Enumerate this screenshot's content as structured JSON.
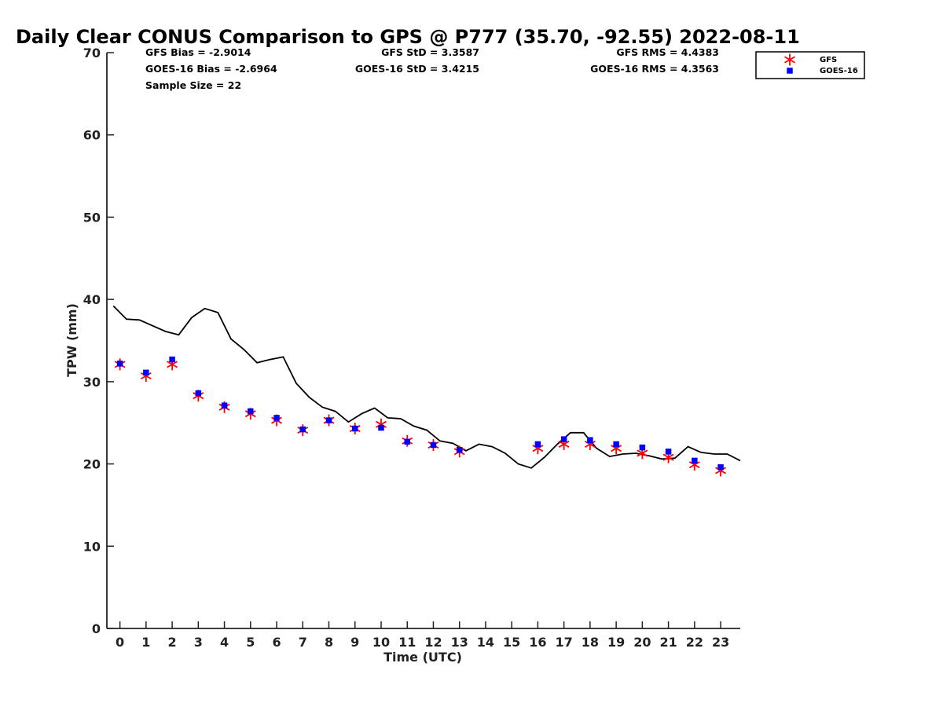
{
  "chart_data": {
    "type": "line",
    "title": "Daily Clear CONUS Comparison to GPS @ P777 (35.70, -92.55) 2022-08-11",
    "xlabel": "Time (UTC)",
    "ylabel": "TPW (mm)",
    "xlim": [
      -0.5,
      23.75
    ],
    "ylim": [
      0,
      70
    ],
    "x_ticks": [
      0,
      1,
      2,
      3,
      4,
      5,
      6,
      7,
      8,
      9,
      10,
      11,
      12,
      13,
      14,
      15,
      16,
      17,
      18,
      19,
      20,
      21,
      22,
      23
    ],
    "y_ticks": [
      0,
      10,
      20,
      30,
      40,
      50,
      60,
      70
    ],
    "grid": false,
    "legend_position": "top-right",
    "stats": {
      "gfs_bias": "GFS Bias = -2.9014",
      "goes_bias": "GOES-16 Bias = -2.6964",
      "sample_size": "Sample Size = 22",
      "gfs_std": "GFS StD = 3.3587",
      "goes_std": "GOES-16 StD = 3.4215",
      "gfs_rms": "GFS RMS = 4.4383",
      "goes_rms": "GOES-16 RMS = 4.3563"
    },
    "series": [
      {
        "name": "GPS",
        "kind": "line",
        "color": "#000000",
        "x": [
          -0.25,
          0.25,
          0.75,
          1.25,
          1.75,
          2.25,
          2.75,
          3.25,
          3.75,
          4.25,
          4.75,
          5.25,
          5.75,
          6.25,
          6.75,
          7.25,
          7.75,
          8.25,
          8.75,
          9.25,
          9.75,
          10.25,
          10.75,
          11.25,
          11.75,
          12.25,
          12.75,
          13.25,
          13.75,
          14.25,
          14.75,
          15.25,
          15.75,
          16.25,
          16.75,
          17.25,
          17.75,
          18.25,
          18.75,
          19.25,
          19.75,
          20.25,
          20.75,
          21.25,
          21.75,
          22.25,
          22.75,
          23.25,
          23.75
        ],
        "y": [
          39.2,
          37.6,
          37.5,
          36.8,
          36.1,
          35.7,
          37.8,
          38.9,
          38.4,
          35.2,
          33.9,
          32.3,
          32.7,
          33.0,
          29.8,
          28.1,
          26.9,
          26.4,
          25.1,
          26.1,
          26.8,
          25.6,
          25.5,
          24.6,
          24.1,
          22.8,
          22.5,
          21.6,
          22.4,
          22.1,
          21.3,
          20.0,
          19.5,
          20.8,
          22.4,
          23.8,
          23.8,
          21.9,
          20.9,
          21.2,
          21.3,
          21.0,
          20.6,
          20.7,
          22.1,
          21.4,
          21.2,
          21.2,
          20.4
        ]
      },
      {
        "name": "GFS",
        "kind": "marker",
        "marker": "asterisk",
        "color": "#ff0000",
        "x": [
          0,
          1,
          2,
          3,
          4,
          5,
          6,
          7,
          8,
          9,
          10,
          11,
          12,
          13,
          16,
          17,
          18,
          19,
          20,
          21,
          22,
          23
        ],
        "y": [
          32.1,
          30.7,
          32.1,
          28.3,
          26.9,
          26.1,
          25.3,
          24.1,
          25.3,
          24.3,
          24.8,
          22.8,
          22.3,
          21.5,
          21.9,
          22.4,
          22.4,
          21.9,
          21.3,
          20.8,
          19.9,
          19.2
        ]
      },
      {
        "name": "GOES-16",
        "kind": "marker",
        "marker": "square",
        "color": "#0000ff",
        "x": [
          0,
          1,
          2,
          3,
          4,
          5,
          6,
          7,
          8,
          9,
          10,
          11,
          12,
          13,
          16,
          17,
          18,
          19,
          20,
          21,
          22,
          23
        ],
        "y": [
          32.2,
          31.1,
          32.7,
          28.6,
          27.1,
          26.4,
          25.6,
          24.2,
          25.3,
          24.3,
          24.4,
          22.7,
          22.3,
          21.7,
          22.4,
          23.0,
          22.9,
          22.4,
          22.0,
          21.5,
          20.4,
          19.6
        ]
      }
    ]
  }
}
